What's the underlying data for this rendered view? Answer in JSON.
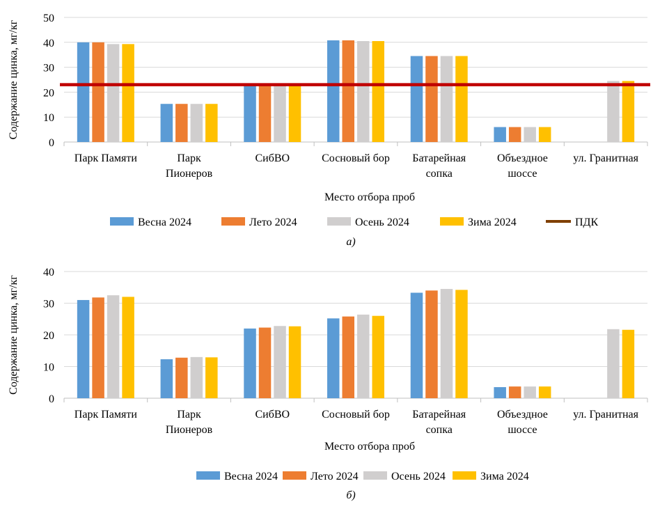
{
  "chart_data": [
    {
      "type": "bar",
      "panel_label": "а)",
      "xlabel": "Место отбора проб",
      "ylabel": "Содержание цинка, мг/кг",
      "ylim": [
        0,
        50
      ],
      "yticks": [
        0,
        10,
        20,
        30,
        40,
        50
      ],
      "grid": true,
      "legend_position": "bottom",
      "categories": [
        [
          "Парк Памяти"
        ],
        [
          "Парк",
          "Пионеров"
        ],
        [
          "СибВО"
        ],
        [
          "Сосновый бор"
        ],
        [
          "Батарейная",
          "сопка"
        ],
        [
          "Объездное",
          "шоссе"
        ],
        [
          "ул. Гранитная"
        ]
      ],
      "series": [
        {
          "name": "Весна 2024",
          "color": "#5b9bd5",
          "values": [
            40,
            15.3,
            22.5,
            40.8,
            34.5,
            6,
            null
          ]
        },
        {
          "name": "Лето 2024",
          "color": "#ed7d31",
          "values": [
            40,
            15.3,
            22.5,
            40.8,
            34.5,
            6,
            null
          ]
        },
        {
          "name": "Осень 2024",
          "color": "#d0cece",
          "values": [
            39.3,
            15.3,
            22.5,
            40.5,
            34.5,
            6,
            24.5
          ]
        },
        {
          "name": "Зима 2024",
          "color": "#ffc000",
          "values": [
            39.3,
            15.3,
            22.5,
            40.5,
            34.5,
            6,
            24.5
          ]
        }
      ],
      "reference_line": {
        "name": "ПДК",
        "value": 23,
        "color": "#c00000",
        "legend_color": "#7f3f00"
      }
    },
    {
      "type": "bar",
      "panel_label": "б)",
      "xlabel": "Место отбора проб",
      "ylabel": "Содержание цинка, мг/кг",
      "ylim": [
        0,
        40
      ],
      "yticks": [
        0,
        10,
        20,
        30,
        40
      ],
      "grid": true,
      "legend_position": "bottom",
      "categories": [
        [
          "Парк Памяти"
        ],
        [
          "Парк",
          "Пионеров"
        ],
        [
          "СибВО"
        ],
        [
          "Сосновый бор"
        ],
        [
          "Батарейная",
          "сопка"
        ],
        [
          "Объездное",
          "шоссе"
        ],
        [
          "ул. Гранитная"
        ]
      ],
      "series": [
        {
          "name": "Весна 2024",
          "color": "#5b9bd5",
          "values": [
            31,
            12.3,
            22,
            25.2,
            33.3,
            3.5,
            null
          ]
        },
        {
          "name": "Лето 2024",
          "color": "#ed7d31",
          "values": [
            31.8,
            12.8,
            22.3,
            25.8,
            34,
            3.7,
            null
          ]
        },
        {
          "name": "Осень 2024",
          "color": "#d0cece",
          "values": [
            32.5,
            13,
            22.8,
            26.4,
            34.5,
            3.7,
            21.8
          ]
        },
        {
          "name": "Зима 2024",
          "color": "#ffc000",
          "values": [
            32,
            12.9,
            22.7,
            26,
            34.2,
            3.7,
            21.6
          ]
        }
      ]
    }
  ]
}
